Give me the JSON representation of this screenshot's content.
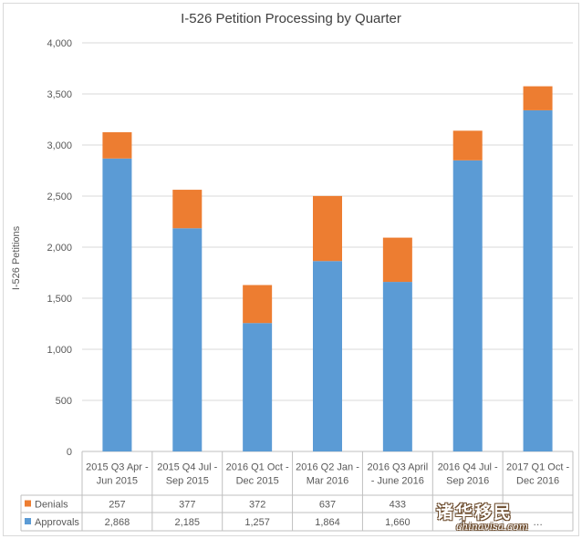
{
  "chart_data": {
    "type": "bar",
    "stacked": true,
    "title": "I-526 Petition Processing by Quarter",
    "xlabel": "",
    "ylabel": "I-526 Petitions",
    "ylim": [
      0,
      4000
    ],
    "yticks": [
      "0",
      "500",
      "1,000",
      "1,500",
      "2,000",
      "2,500",
      "3,000",
      "3,500",
      "4,000"
    ],
    "grid": true,
    "legend": "data-table",
    "categories": [
      "2015 Q3 Apr - Jun 2015",
      "2015 Q4 Jul - Sep 2015",
      "2016 Q1 Oct - Dec 2015",
      "2016 Q2 Jan - Mar 2016",
      "2016 Q3 April - June 2016",
      "2016 Q4 Jul - Sep 2016",
      "2017 Q1 Oct - Dec 2016"
    ],
    "series": [
      {
        "name": "Approvals",
        "color": "#5b9bd5",
        "values": [
          2868,
          2185,
          1257,
          1864,
          1660,
          2850,
          3340
        ],
        "labels": [
          "2,868",
          "2,185",
          "1,257",
          "1,864",
          "1,660",
          "2,…",
          "…"
        ]
      },
      {
        "name": "Denials",
        "color": "#ed7d31",
        "values": [
          257,
          377,
          372,
          637,
          433,
          290,
          235
        ],
        "labels": [
          "257",
          "377",
          "372",
          "637",
          "433",
          "…",
          ""
        ]
      }
    ]
  },
  "watermark": {
    "main": "诸华移民",
    "sub": "chinavisa.com"
  }
}
